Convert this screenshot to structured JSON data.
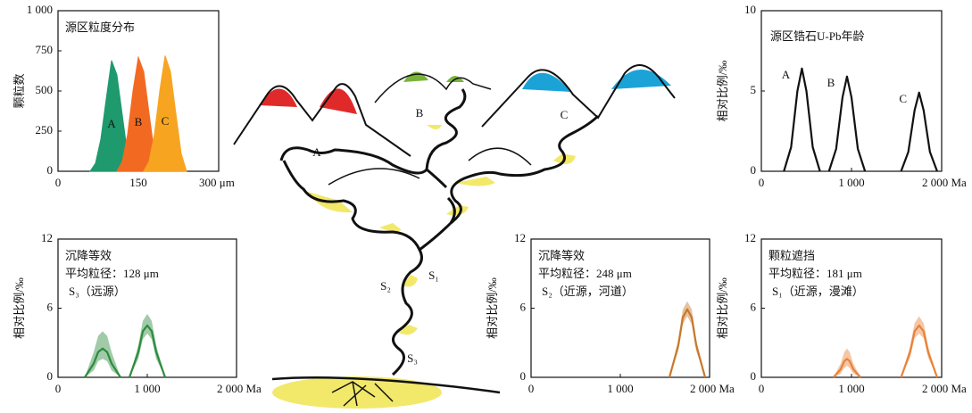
{
  "chart_data": [
    {
      "type": "area",
      "title": "源区粒度分布",
      "ylabel": "颗粒数",
      "xlim": [
        0,
        300
      ],
      "xticks": [
        0,
        150,
        {
          "value": 300,
          "label": "300 μm"
        }
      ],
      "ylim": [
        0,
        1000
      ],
      "yticks": [
        0,
        250,
        500,
        750,
        {
          "value": 1000,
          "label": "1 000"
        }
      ],
      "series": [
        {
          "name": "A",
          "color": "#1e9a6e",
          "x": [
            60,
            70,
            80,
            90,
            100,
            110,
            120,
            130,
            140
          ],
          "values": [
            0,
            50,
            200,
            450,
            690,
            600,
            350,
            100,
            0
          ]
        },
        {
          "name": "B",
          "color": "#f26a22",
          "x": [
            110,
            120,
            130,
            140,
            150,
            160,
            170,
            180,
            190
          ],
          "values": [
            0,
            60,
            230,
            500,
            710,
            620,
            360,
            110,
            0
          ]
        },
        {
          "name": "C",
          "color": "#f7a521",
          "x": [
            160,
            170,
            180,
            190,
            200,
            210,
            220,
            230,
            240
          ],
          "values": [
            0,
            60,
            230,
            500,
            720,
            620,
            360,
            110,
            0
          ]
        }
      ]
    },
    {
      "type": "line",
      "title": "源区锆石U-Pb年龄",
      "ylabel": "相对比例/‰",
      "xlim": [
        0,
        2000
      ],
      "xticks": [
        0,
        {
          "value": 1000,
          "label": "1 000"
        },
        {
          "value": 2000,
          "label": "2 000 Ma"
        }
      ],
      "ylim": [
        0,
        10
      ],
      "yticks": [
        0,
        5,
        10
      ],
      "series": [
        {
          "name": "A",
          "color": "#111111",
          "x": [
            250,
            330,
            400,
            450,
            500,
            570,
            650
          ],
          "values": [
            0,
            1.5,
            5,
            6.4,
            5,
            1.5,
            0
          ]
        },
        {
          "name": "B",
          "color": "#111111",
          "x": [
            750,
            830,
            900,
            950,
            1000,
            1070,
            1150
          ],
          "values": [
            0,
            1.4,
            4.6,
            5.9,
            4.6,
            1.4,
            0
          ]
        },
        {
          "name": "C",
          "color": "#111111",
          "x": [
            1550,
            1630,
            1700,
            1750,
            1800,
            1870,
            1950
          ],
          "values": [
            0,
            1.2,
            3.8,
            4.9,
            3.8,
            1.2,
            0
          ]
        }
      ]
    },
    {
      "type": "line",
      "title": "沉降等效",
      "subtitle": "平均粒径：128 μm",
      "note": "S₃（远源）",
      "ylabel": "相对比例/‰",
      "xlim": [
        0,
        2000
      ],
      "xticks": [
        0,
        {
          "value": 1000,
          "label": "1 000"
        },
        {
          "value": 2000,
          "label": "2 000 Ma"
        }
      ],
      "ylim": [
        0,
        12
      ],
      "yticks": [
        0,
        6,
        12
      ],
      "series": [
        {
          "color": "#2e8b3e",
          "x": [
            300,
            400,
            450,
            500,
            550,
            600,
            700
          ],
          "values": [
            0,
            1.2,
            2.2,
            2.5,
            2.2,
            1.2,
            0
          ],
          "upper": [
            0,
            2.2,
            3.6,
            4.0,
            3.6,
            2.2,
            0
          ],
          "lower": [
            0,
            0.6,
            1.4,
            1.6,
            1.4,
            0.6,
            0
          ]
        },
        {
          "color": "#2e8b3e",
          "x": [
            800,
            900,
            950,
            1000,
            1050,
            1100,
            1200
          ],
          "values": [
            0,
            2.2,
            4.0,
            4.5,
            4.0,
            2.2,
            0
          ],
          "upper": [
            0,
            2.8,
            4.9,
            5.5,
            4.9,
            2.8,
            0
          ],
          "lower": [
            0,
            1.6,
            3.3,
            3.8,
            3.3,
            1.6,
            0
          ]
        }
      ]
    },
    {
      "type": "line",
      "title": "沉降等效",
      "subtitle": "平均粒径：248 μm",
      "note": "S₂（近源，河道）",
      "ylabel": "相对比例/‰",
      "xlim": [
        0,
        2000
      ],
      "xticks": [
        0,
        {
          "value": 1000,
          "label": "1 000"
        },
        {
          "value": 2000,
          "label": "2 000 Ma"
        }
      ],
      "ylim": [
        0,
        12
      ],
      "yticks": [
        0,
        6,
        12
      ],
      "series": [
        {
          "color": "#c8782a",
          "x": [
            1550,
            1650,
            1700,
            1750,
            1800,
            1850,
            1950
          ],
          "values": [
            0,
            2.8,
            5.2,
            5.9,
            5.2,
            2.8,
            0
          ],
          "upper": [
            0,
            3.3,
            5.9,
            6.6,
            5.9,
            3.3,
            0
          ],
          "lower": [
            0,
            2.3,
            4.6,
            5.3,
            4.6,
            2.3,
            0
          ]
        }
      ]
    },
    {
      "type": "line",
      "title": "颗粒遮挡",
      "subtitle": "平均粒径：181 μm",
      "note": "S₁（近源，漫滩）",
      "ylabel": "相对比例/‰",
      "xlim": [
        0,
        2000
      ],
      "xticks": [
        0,
        {
          "value": 1000,
          "label": "1 000"
        },
        {
          "value": 2000,
          "label": "2 000 Ma"
        }
      ],
      "ylim": [
        0,
        12
      ],
      "yticks": [
        0,
        6,
        12
      ],
      "series": [
        {
          "color": "#e8823a",
          "x": [
            800,
            880,
            920,
            950,
            980,
            1020,
            1100
          ],
          "values": [
            0,
            0.7,
            1.4,
            1.6,
            1.4,
            0.7,
            0
          ],
          "upper": [
            0,
            1.2,
            2.2,
            2.5,
            2.2,
            1.2,
            0
          ],
          "lower": [
            0,
            0.3,
            0.8,
            1.0,
            0.8,
            0.3,
            0
          ]
        },
        {
          "color": "#e8823a",
          "x": [
            1550,
            1650,
            1700,
            1750,
            1800,
            1850,
            1950
          ],
          "values": [
            0,
            2.2,
            4.0,
            4.5,
            4.0,
            2.2,
            0
          ],
          "upper": [
            0,
            2.7,
            4.7,
            5.3,
            4.7,
            2.7,
            0
          ],
          "lower": [
            0,
            1.7,
            3.4,
            3.8,
            3.4,
            1.7,
            0
          ]
        }
      ]
    }
  ],
  "diagram": {
    "labels": [
      "A",
      "B",
      "C",
      "S₁",
      "S₂",
      "S₃"
    ]
  }
}
